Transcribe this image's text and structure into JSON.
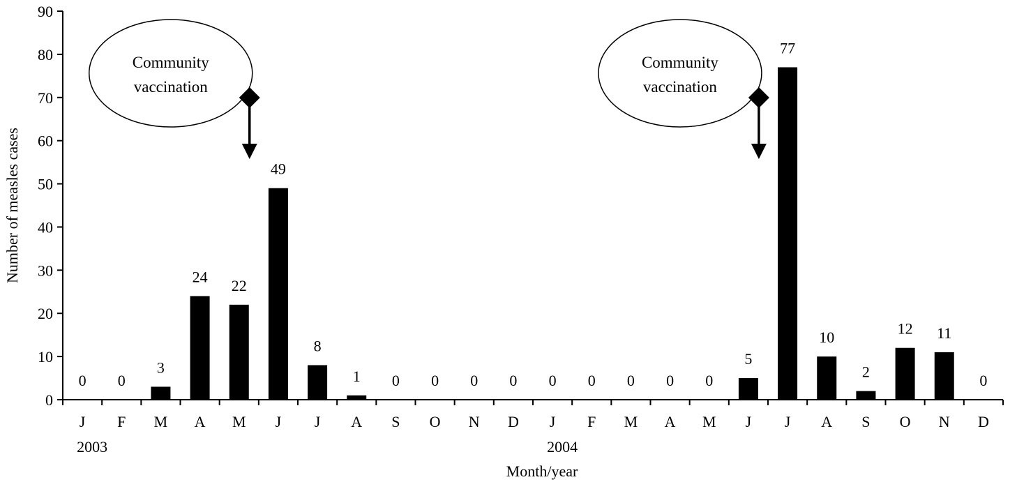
{
  "chart_data": {
    "type": "bar",
    "title": "",
    "xlabel": "Month/year",
    "ylabel": "Number of measles cases",
    "ylim": [
      0,
      90
    ],
    "yticks": [
      0,
      10,
      20,
      30,
      40,
      50,
      60,
      70,
      80,
      90
    ],
    "categories": [
      "J",
      "F",
      "M",
      "A",
      "M",
      "J",
      "J",
      "A",
      "S",
      "O",
      "N",
      "D",
      "J",
      "F",
      "M",
      "A",
      "M",
      "J",
      "J",
      "A",
      "S",
      "O",
      "N",
      "D"
    ],
    "values": [
      0,
      0,
      3,
      24,
      22,
      49,
      8,
      1,
      0,
      0,
      0,
      0,
      0,
      0,
      0,
      0,
      0,
      5,
      77,
      10,
      2,
      12,
      11,
      0
    ],
    "data_labels": [
      "0",
      "0",
      "3",
      "24",
      "22",
      "49",
      "8",
      "1",
      "0",
      "0",
      "0",
      "0",
      "0",
      "0",
      "0",
      "0",
      "0",
      "5",
      "77",
      "10",
      "2",
      "12",
      "11",
      "0"
    ],
    "year_labels": [
      {
        "text": "2003",
        "at_category_index": 0
      },
      {
        "text": "2004",
        "at_category_index": 12
      }
    ],
    "bar_color": "#000000",
    "grid": false,
    "annotations": [
      {
        "line1": "Community",
        "line2": "vaccination",
        "arrow_at_category_index": 4
      },
      {
        "line1": "Community",
        "line2": "vaccination",
        "arrow_at_category_index": 17
      }
    ]
  }
}
